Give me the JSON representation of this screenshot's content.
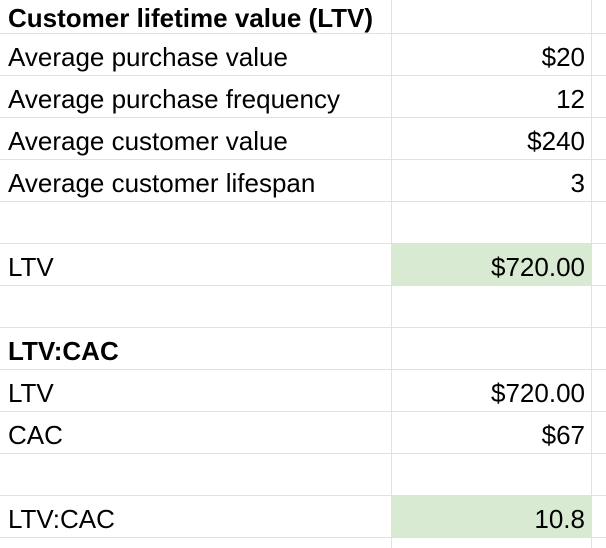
{
  "sheet": {
    "colors": {
      "gridline": "#e1e1e1",
      "highlight_green": "#d9ead3",
      "text": "#000000"
    },
    "rows": [
      {
        "label": "Customer lifetime value (LTV)",
        "value": "",
        "bold": true,
        "highlight": false
      },
      {
        "label": "Average purchase value",
        "value": "$20",
        "bold": false,
        "highlight": false
      },
      {
        "label": "Average purchase frequency",
        "value": "12",
        "bold": false,
        "highlight": false
      },
      {
        "label": "Average customer value",
        "value": "$240",
        "bold": false,
        "highlight": false
      },
      {
        "label": "Average customer lifespan",
        "value": "3",
        "bold": false,
        "highlight": false
      },
      {
        "label": "",
        "value": "",
        "bold": false,
        "highlight": false
      },
      {
        "label": "LTV",
        "value": "$720.00",
        "bold": false,
        "highlight": true
      },
      {
        "label": "",
        "value": "",
        "bold": false,
        "highlight": false
      },
      {
        "label": "LTV:CAC",
        "value": "",
        "bold": true,
        "highlight": false
      },
      {
        "label": "LTV",
        "value": "$720.00",
        "bold": false,
        "highlight": false
      },
      {
        "label": "CAC",
        "value": "$67",
        "bold": false,
        "highlight": false
      },
      {
        "label": "",
        "value": "",
        "bold": false,
        "highlight": false
      },
      {
        "label": "LTV:CAC",
        "value": "10.8",
        "bold": false,
        "highlight": true
      },
      {
        "label": "",
        "value": "",
        "bold": false,
        "highlight": false
      }
    ]
  }
}
